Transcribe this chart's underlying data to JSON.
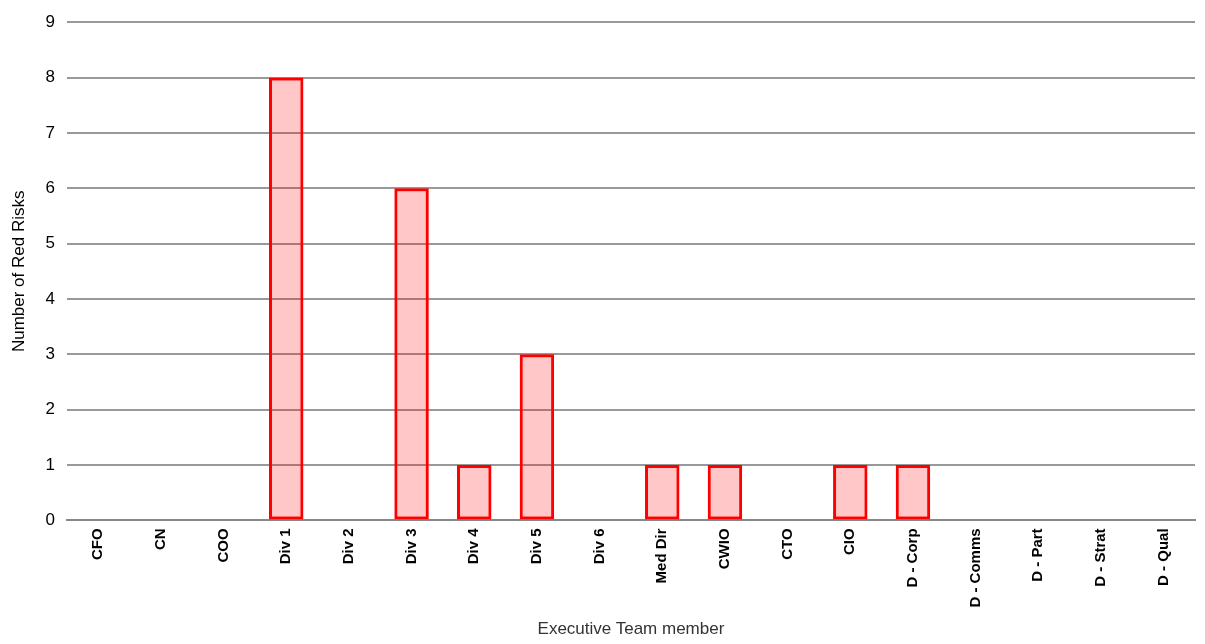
{
  "chart_data": {
    "type": "bar",
    "xlabel": "Executive Team member",
    "ylabel": "Number of Red Risks",
    "categories": [
      "CFO",
      "CN",
      "COO",
      "Div 1",
      "Div 2",
      "Div 3",
      "Div 4",
      "Div 5",
      "Div 6",
      "Med Dir",
      "CWIO",
      "CTO",
      "CIO",
      "D - Corp",
      "D - Comms",
      "D - Part",
      "D - Strat",
      "D - Qual"
    ],
    "values": [
      0,
      0,
      0,
      8,
      0,
      6,
      1,
      3,
      0,
      1,
      1,
      0,
      1,
      1,
      0,
      0,
      0,
      0
    ],
    "color": "#ff0000",
    "ylim": [
      0,
      9
    ],
    "yticks": [
      0,
      1,
      2,
      3,
      4,
      5,
      6,
      7,
      8,
      9
    ],
    "grid": "y",
    "legend": false
  }
}
